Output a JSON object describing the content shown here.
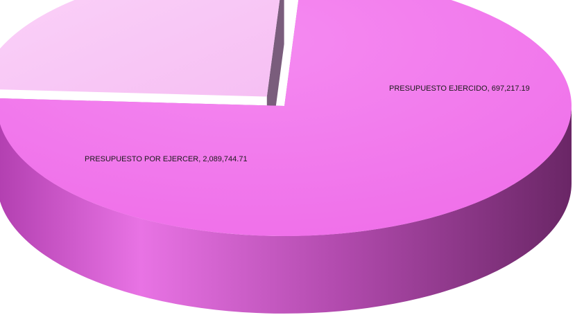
{
  "chart_data": {
    "type": "pie",
    "title": "",
    "slices": [
      {
        "label": "PRESUPUESTO POR EJERCER",
        "value": 2089744.71,
        "display": "2,089,744.71",
        "color": "#f47ef0"
      },
      {
        "label": "PRESUPUESTO EJERCIDO",
        "value": 697217.19,
        "display": "697,217.19",
        "color": "#f9c6f7"
      }
    ],
    "style": "3d-exploded",
    "legend": "none"
  },
  "labels": {
    "slice0": "PRESUPUESTO POR EJERCER, 2,089,744.71",
    "slice1": "PRESUPUESTO EJERCIDO, 697,217.19"
  }
}
